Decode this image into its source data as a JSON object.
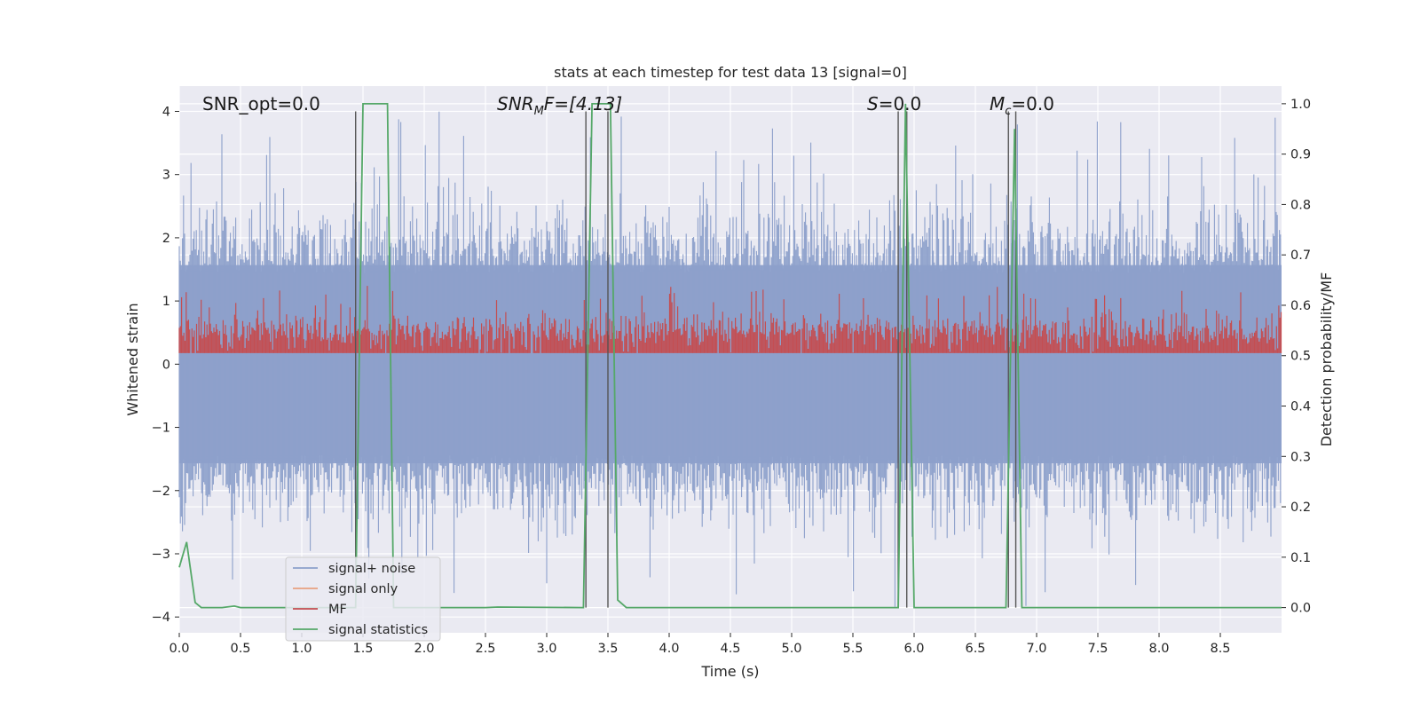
{
  "chart_data": {
    "type": "line",
    "title": "stats at each timestep for test data 13 [signal=0]",
    "xlabel": "Time (s)",
    "ylabel_left": "Whitened strain",
    "ylabel_right": "Detection probability/MF",
    "xlim": [
      0.0,
      9.0
    ],
    "ylim_left": [
      -4.25,
      4.4
    ],
    "ylim_right": [
      -0.05,
      1.035
    ],
    "xticks": [
      "0.0",
      "0.5",
      "1.0",
      "1.5",
      "2.0",
      "2.5",
      "3.0",
      "3.5",
      "4.0",
      "4.5",
      "5.0",
      "5.5",
      "6.0",
      "6.5",
      "7.0",
      "7.5",
      "8.0",
      "8.5"
    ],
    "yticks_left": [
      "4",
      "3",
      "2",
      "1",
      "0",
      "−1",
      "−2",
      "−3",
      "−4"
    ],
    "yticks_right": [
      "1.0",
      "0.9",
      "0.8",
      "0.7",
      "0.6",
      "0.5",
      "0.4",
      "0.3",
      "0.2",
      "0.1",
      "0.0"
    ],
    "grid": true,
    "legend_position": "lower-left",
    "annotations": {
      "snr_opt": "SNR_opt=0.0",
      "snr_mf": "SNR",
      "snr_mf_sub": "M",
      "snr_mf_rest": "F=[4.13]",
      "s_stat": "S",
      "s_rest": "=0.0",
      "mc": "M",
      "mc_sub": "c",
      "mc_rest": "=0.0"
    },
    "series": [
      {
        "name": "signal+ noise",
        "color": "#8da0cb",
        "envelope": {
          "upper_typical": 1.6,
          "lower_typical": -1.6,
          "upper_peak": 4.0,
          "lower_peak": -3.9
        }
      },
      {
        "name": "signal only",
        "color": "#e8a07f",
        "values": []
      },
      {
        "name": "MF",
        "color": "#c44e52",
        "axis": "right",
        "range": [
          0.5,
          0.64
        ]
      },
      {
        "name": "signal statistics",
        "color": "#55a868",
        "axis": "right",
        "x": [
          0.0,
          0.06,
          0.13,
          0.18,
          0.35,
          0.45,
          0.5,
          0.7,
          1.0,
          1.4,
          1.44,
          1.5,
          1.7,
          1.75,
          2.5,
          2.6,
          3.3,
          3.37,
          3.52,
          3.58,
          3.65,
          5.87,
          5.93,
          6.0,
          6.75,
          6.82,
          6.88,
          9.0
        ],
        "y": [
          0.08,
          0.13,
          0.01,
          0.0,
          0.0,
          0.003,
          0.0,
          0.0,
          0.0,
          0.0,
          0.0,
          1.0,
          1.0,
          0.0,
          0.0,
          0.001,
          0.0,
          1.0,
          1.0,
          0.015,
          0.0,
          0.0,
          1.0,
          0.0,
          0.0,
          0.95,
          0.0,
          0.0
        ]
      }
    ],
    "vlines": [
      {
        "x": 1.44,
        "ymax_left": 4.0
      },
      {
        "x": 3.32,
        "ymax_left": 4.0
      },
      {
        "x": 3.5,
        "ymax_left": 4.0
      },
      {
        "x": 5.87,
        "ymax_left": 4.0
      },
      {
        "x": 5.94,
        "ymax_left": 4.0
      },
      {
        "x": 6.77,
        "ymax_left": 4.0
      },
      {
        "x": 6.83,
        "ymax_left": 4.0
      }
    ],
    "colors": {
      "background": "#eaeaf2",
      "grid": "#ffffff",
      "vline": "#555555"
    }
  }
}
